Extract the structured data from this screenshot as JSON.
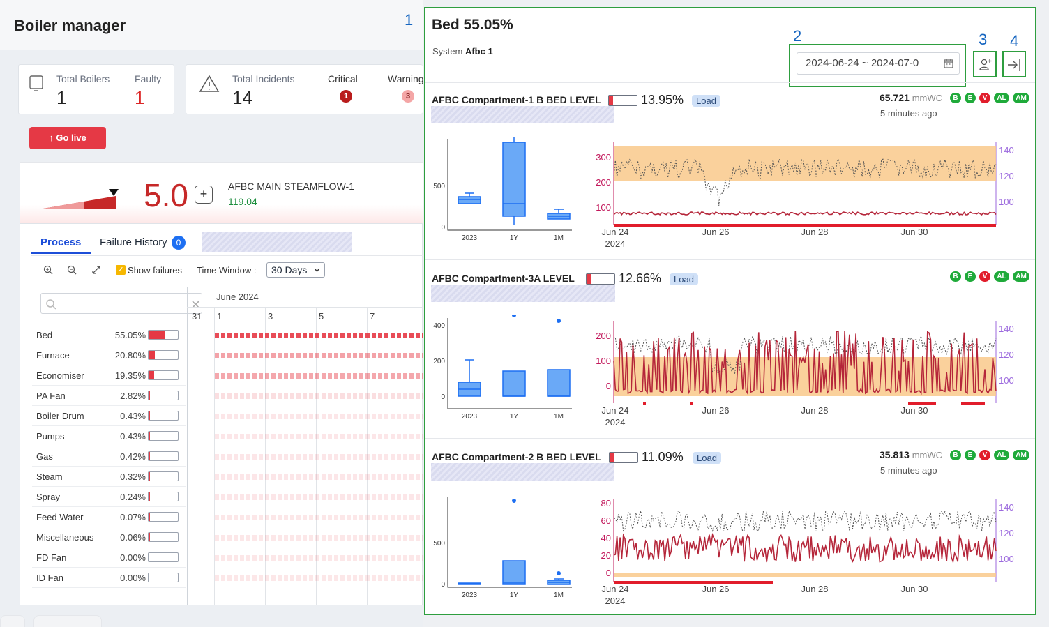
{
  "app": {
    "title": "Boiler manager"
  },
  "callouts": [
    "1",
    "2",
    "3",
    "4"
  ],
  "stats": {
    "total_boilers_label": "Total Boilers",
    "total_boilers": "1",
    "faulty_label": "Faulty",
    "faulty": "1",
    "total_incidents_label": "Total Incidents",
    "total_incidents": "14",
    "critical_label": "Critical",
    "critical": "1",
    "warning_label": "Warning",
    "warning": "3"
  },
  "go_live_label": "↑ Go live",
  "gauge": {
    "value": "5.0",
    "name": "AFBC MAIN STEAMFLOW-1",
    "reading": "119.04",
    "plus": "+"
  },
  "tabs": {
    "process": "Process",
    "failure_history": "Failure History",
    "failure_count": "0"
  },
  "toolbar": {
    "show_failures": "Show failures",
    "time_window_label": "Time Window :",
    "time_window": "30 Days"
  },
  "categories": [
    {
      "name": "Bed",
      "pct": "55.05%",
      "fill": 55.05
    },
    {
      "name": "Furnace",
      "pct": "20.80%",
      "fill": 20.8
    },
    {
      "name": "Economiser",
      "pct": "19.35%",
      "fill": 19.35
    },
    {
      "name": "PA Fan",
      "pct": "2.82%",
      "fill": 2.82
    },
    {
      "name": "Boiler Drum",
      "pct": "0.43%",
      "fill": 0.43
    },
    {
      "name": "Pumps",
      "pct": "0.43%",
      "fill": 0.43
    },
    {
      "name": "Gas",
      "pct": "0.42%",
      "fill": 0.42
    },
    {
      "name": "Steam",
      "pct": "0.32%",
      "fill": 0.32
    },
    {
      "name": "Spray",
      "pct": "0.24%",
      "fill": 0.24
    },
    {
      "name": "Feed Water",
      "pct": "0.07%",
      "fill": 0.07
    },
    {
      "name": "Miscellaneous",
      "pct": "0.06%",
      "fill": 0.06
    },
    {
      "name": "FD Fan",
      "pct": "0.00%",
      "fill": 0
    },
    {
      "name": "ID Fan",
      "pct": "0.00%",
      "fill": 0
    }
  ],
  "timeline": {
    "month": "June 2024",
    "days": [
      "31",
      "1",
      "3",
      "5",
      "7"
    ]
  },
  "detail": {
    "title": "Bed 55.05%",
    "system_label": "System",
    "system_value": "Afbc 1",
    "date_range": "2024-06-24 ~ 2024-07-0",
    "tags": [
      "B",
      "E",
      "V",
      "AL",
      "AM"
    ],
    "box_labels": [
      "2023",
      "1Y",
      "1M"
    ],
    "x_ticks": [
      "Jun 24",
      "Jun 26",
      "Jun 28",
      "Jun 30"
    ],
    "x_year": "2024",
    "metrics": [
      {
        "title": "AFBC Compartment-1 B BED LEVEL",
        "pct": "13.95%",
        "load": "Load",
        "reading": "65.721",
        "unit": "mmWC",
        "ago": "5 minutes ago",
        "box_y": [
          "500",
          "0"
        ],
        "left_y": [
          "300",
          "200",
          "100"
        ],
        "right_y": [
          "140",
          "120",
          "100"
        ]
      },
      {
        "title": "AFBC Compartment-3A LEVEL",
        "pct": "12.66%",
        "load": "Load",
        "box_y": [
          "400",
          "200",
          "0"
        ],
        "left_y": [
          "200",
          "100",
          "0"
        ],
        "right_y": [
          "140",
          "120",
          "100"
        ]
      },
      {
        "title": "AFBC Compartment-2 B BED LEVEL",
        "pct": "11.09%",
        "load": "Load",
        "reading": "35.813",
        "unit": "mmWC",
        "ago": "5 minutes ago",
        "box_y": [
          "500",
          "0"
        ],
        "left_y": [
          "80",
          "60",
          "40",
          "20",
          "0"
        ],
        "right_y": [
          "140",
          "120",
          "100"
        ]
      }
    ]
  },
  "colors": {
    "accent": "#1d4ed8",
    "danger": "#e53945",
    "frame": "#2e9e3f",
    "band": "#f9c98b",
    "series": "#b5263a"
  },
  "icons": [
    "tablet-icon",
    "warning-icon",
    "zoom-in-icon",
    "zoom-out-icon",
    "expand-icon",
    "search-icon",
    "close-icon",
    "calendar-icon",
    "add-user-icon",
    "exit-icon"
  ]
}
